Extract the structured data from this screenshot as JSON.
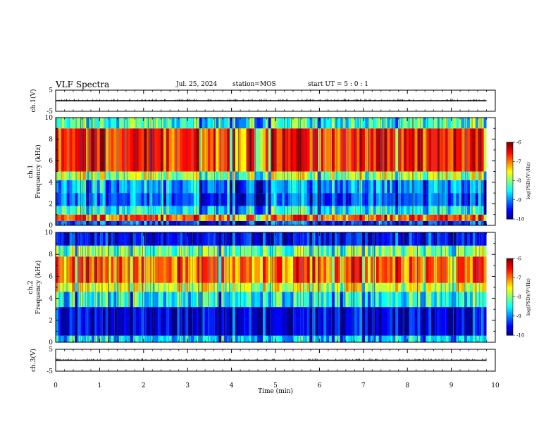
{
  "header": {
    "title": "VLF Spectra",
    "date": "Jul. 25, 2024",
    "station": "station=MOS",
    "start": "start UT = 5 : 0 : 1"
  },
  "chart_data": [
    {
      "type": "line",
      "panel": "ch1-waveform",
      "ylabel": "ch.1(V)",
      "ylim": [
        -5,
        5
      ],
      "yticks": [
        "5",
        "-5"
      ],
      "xlim": [
        0,
        10
      ],
      "series": [
        {
          "x": [
            0,
            9.8
          ],
          "y": [
            0,
            0
          ]
        }
      ]
    },
    {
      "type": "heatmap",
      "panel": "ch1-spectrogram",
      "ylabel": "ch.1 Frequency (kHz)",
      "ylim": [
        0,
        10
      ],
      "yticks": [
        "0",
        "2",
        "4",
        "6",
        "8",
        "10"
      ],
      "xlim": [
        0,
        10
      ],
      "data_xmax": 9.8,
      "colorbar": {
        "label": "log(PSD)(V²/Hz)",
        "ticks": [
          "-6",
          "-7",
          "-8",
          "-9",
          "-10"
        ],
        "range": [
          -10,
          -6
        ]
      },
      "bands": [
        {
          "f": [
            0,
            0.4
          ],
          "level": -9.2
        },
        {
          "f": [
            0.4,
            1.0
          ],
          "level": -6.8
        },
        {
          "f": [
            1.0,
            1.8
          ],
          "level": -8.4
        },
        {
          "f": [
            1.8,
            3.0
          ],
          "level": -9.1
        },
        {
          "f": [
            3.0,
            4.2
          ],
          "level": -8.8
        },
        {
          "f": [
            4.2,
            5.0
          ],
          "level": -7.8
        },
        {
          "f": [
            5.0,
            9.0
          ],
          "level": -6.6
        },
        {
          "f": [
            9.0,
            10
          ],
          "level": -8.2
        }
      ]
    },
    {
      "type": "heatmap",
      "panel": "ch2-spectrogram",
      "ylabel": "ch.2 Frequency (kHz)",
      "ylim": [
        0,
        10
      ],
      "yticks": [
        "0",
        "2",
        "4",
        "6",
        "8",
        "10"
      ],
      "xlim": [
        0,
        10
      ],
      "data_xmax": 9.8,
      "colorbar": {
        "label": "log(PSD)(V²/Hz)",
        "ticks": [
          "-6",
          "-7",
          "-8",
          "-9",
          "-10"
        ],
        "range": [
          -10,
          -6
        ]
      },
      "bands": [
        {
          "f": [
            0,
            0.6
          ],
          "level": -8.6
        },
        {
          "f": [
            0.6,
            3.2
          ],
          "level": -9.6
        },
        {
          "f": [
            3.2,
            4.6
          ],
          "level": -8.4
        },
        {
          "f": [
            4.6,
            5.4
          ],
          "level": -7.6
        },
        {
          "f": [
            5.4,
            7.8
          ],
          "level": -6.9
        },
        {
          "f": [
            7.8,
            8.8
          ],
          "level": -8.0
        },
        {
          "f": [
            8.8,
            10
          ],
          "level": -9.5
        }
      ]
    },
    {
      "type": "line",
      "panel": "ch3-waveform",
      "ylabel": "ch.3(V)",
      "ylim": [
        -5,
        5
      ],
      "yticks": [
        "5",
        "-5"
      ],
      "xlim": [
        0,
        10
      ],
      "series": [
        {
          "x": [
            0,
            9.8
          ],
          "y": [
            0,
            0
          ]
        }
      ]
    }
  ],
  "xaxis": {
    "label": "Time (min)",
    "ticks": [
      "0",
      "1",
      "2",
      "3",
      "4",
      "5",
      "6",
      "7",
      "8",
      "9",
      "10"
    ]
  }
}
